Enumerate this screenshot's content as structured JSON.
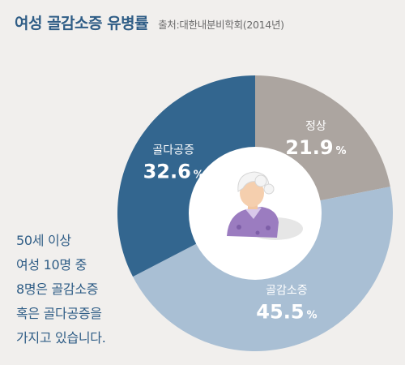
{
  "header": {
    "title": "여성 골감소증 유병률",
    "source": "출처:대한내분비학회(2014년)"
  },
  "chart_data": {
    "type": "pie",
    "categories": [
      "정상",
      "골감소증",
      "골다공증"
    ],
    "values": [
      21.9,
      45.5,
      32.6
    ],
    "value_labels": [
      "21.9",
      "45.5",
      "32.6"
    ],
    "unit": "%",
    "colors": [
      "#aca5a0",
      "#a9bfd4",
      "#33668f"
    ],
    "title": "여성 골감소증 유병률"
  },
  "note": {
    "lines": [
      "50세 이상",
      "여성 10명 중",
      "8명은 골감소증",
      "혹은 골다공증을",
      "가지고 있습니다."
    ]
  },
  "icons": {
    "center": "elderly-woman-icon"
  }
}
